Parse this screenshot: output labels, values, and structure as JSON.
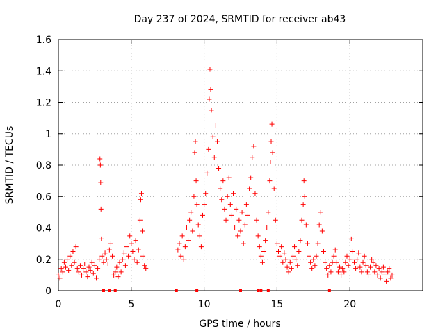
{
  "chart_data": {
    "type": "scatter",
    "title": "Day 237 of 2024, SRMTID for receiver ab43",
    "xlabel": "GPS time / hours",
    "ylabel": "SRMTID / TECUs",
    "xlim": [
      0,
      25
    ],
    "ylim": [
      0,
      1.6
    ],
    "xticks": [
      0,
      5,
      10,
      15,
      20
    ],
    "xtick_labels": [
      "0",
      "5",
      "10",
      "15",
      "20"
    ],
    "yticks": [
      0,
      0.2,
      0.4,
      0.6,
      0.8,
      1.0,
      1.2,
      1.4,
      1.6
    ],
    "ytick_labels": [
      "0",
      "0.2",
      "0.4",
      "0.6",
      "0.8",
      "1",
      "1.2",
      "1.4",
      "1.6"
    ],
    "grid": true,
    "marker": "plus",
    "color": "#ff0000",
    "series": [
      {
        "name": "SRMTID",
        "points": [
          [
            0.0,
            0.1
          ],
          [
            0.1,
            0.08
          ],
          [
            0.2,
            0.14
          ],
          [
            0.3,
            0.12
          ],
          [
            0.4,
            0.18
          ],
          [
            0.5,
            0.15
          ],
          [
            0.6,
            0.2
          ],
          [
            0.7,
            0.13
          ],
          [
            0.8,
            0.22
          ],
          [
            0.9,
            0.16
          ],
          [
            1.0,
            0.25
          ],
          [
            1.1,
            0.18
          ],
          [
            1.2,
            0.28
          ],
          [
            1.3,
            0.14
          ],
          [
            1.4,
            0.12
          ],
          [
            1.5,
            0.16
          ],
          [
            1.6,
            0.1
          ],
          [
            1.7,
            0.14
          ],
          [
            1.8,
            0.17
          ],
          [
            1.9,
            0.12
          ],
          [
            2.0,
            0.09
          ],
          [
            2.1,
            0.15
          ],
          [
            2.2,
            0.13
          ],
          [
            2.3,
            0.18
          ],
          [
            2.4,
            0.11
          ],
          [
            2.5,
            0.16
          ],
          [
            2.6,
            0.08
          ],
          [
            2.7,
            0.14
          ],
          [
            2.8,
            0.2
          ],
          [
            2.85,
            0.84
          ],
          [
            2.88,
            0.8
          ],
          [
            2.9,
            0.69
          ],
          [
            2.92,
            0.52
          ],
          [
            2.95,
            0.33
          ],
          [
            3.0,
            0.22
          ],
          [
            3.1,
            0.18
          ],
          [
            3.2,
            0.24
          ],
          [
            3.3,
            0.2
          ],
          [
            3.4,
            0.17
          ],
          [
            3.5,
            0.26
          ],
          [
            3.6,
            0.3
          ],
          [
            3.7,
            0.22
          ],
          [
            3.8,
            0.1
          ],
          [
            3.9,
            0.12
          ],
          [
            4.0,
            0.15
          ],
          [
            4.1,
            0.09
          ],
          [
            4.2,
            0.18
          ],
          [
            4.3,
            0.12
          ],
          [
            4.4,
            0.2
          ],
          [
            4.5,
            0.24
          ],
          [
            4.6,
            0.16
          ],
          [
            4.7,
            0.28
          ],
          [
            4.8,
            0.22
          ],
          [
            4.9,
            0.35
          ],
          [
            5.0,
            0.3
          ],
          [
            5.1,
            0.25
          ],
          [
            5.2,
            0.2
          ],
          [
            5.3,
            0.32
          ],
          [
            5.4,
            0.18
          ],
          [
            5.5,
            0.26
          ],
          [
            5.6,
            0.45
          ],
          [
            5.65,
            0.58
          ],
          [
            5.7,
            0.62
          ],
          [
            5.75,
            0.38
          ],
          [
            5.8,
            0.22
          ],
          [
            5.9,
            0.16
          ],
          [
            6.0,
            0.14
          ],
          [
            8.2,
            0.26
          ],
          [
            8.3,
            0.3
          ],
          [
            8.4,
            0.22
          ],
          [
            8.5,
            0.35
          ],
          [
            8.6,
            0.2
          ],
          [
            8.7,
            0.28
          ],
          [
            8.8,
            0.4
          ],
          [
            8.9,
            0.32
          ],
          [
            9.0,
            0.45
          ],
          [
            9.1,
            0.5
          ],
          [
            9.2,
            0.38
          ],
          [
            9.3,
            0.6
          ],
          [
            9.35,
            0.88
          ],
          [
            9.4,
            0.95
          ],
          [
            9.45,
            0.7
          ],
          [
            9.5,
            0.55
          ],
          [
            9.6,
            0.42
          ],
          [
            9.7,
            0.35
          ],
          [
            9.8,
            0.28
          ],
          [
            9.9,
            0.48
          ],
          [
            10.0,
            0.55
          ],
          [
            10.1,
            0.62
          ],
          [
            10.2,
            0.75
          ],
          [
            10.3,
            0.9
          ],
          [
            10.35,
            1.22
          ],
          [
            10.4,
            1.41
          ],
          [
            10.45,
            1.28
          ],
          [
            10.5,
            1.15
          ],
          [
            10.6,
            0.98
          ],
          [
            10.7,
            0.85
          ],
          [
            10.8,
            1.05
          ],
          [
            10.9,
            0.95
          ],
          [
            11.0,
            0.78
          ],
          [
            11.1,
            0.65
          ],
          [
            11.2,
            0.58
          ],
          [
            11.3,
            0.7
          ],
          [
            11.4,
            0.52
          ],
          [
            11.5,
            0.45
          ],
          [
            11.6,
            0.6
          ],
          [
            11.7,
            0.72
          ],
          [
            11.8,
            0.55
          ],
          [
            11.9,
            0.48
          ],
          [
            12.0,
            0.62
          ],
          [
            12.1,
            0.4
          ],
          [
            12.2,
            0.52
          ],
          [
            12.3,
            0.35
          ],
          [
            12.4,
            0.45
          ],
          [
            12.5,
            0.38
          ],
          [
            12.6,
            0.5
          ],
          [
            12.7,
            0.3
          ],
          [
            12.8,
            0.42
          ],
          [
            12.9,
            0.55
          ],
          [
            13.0,
            0.48
          ],
          [
            13.1,
            0.65
          ],
          [
            13.2,
            0.72
          ],
          [
            13.3,
            0.85
          ],
          [
            13.4,
            0.92
          ],
          [
            13.5,
            0.62
          ],
          [
            13.6,
            0.45
          ],
          [
            13.7,
            0.35
          ],
          [
            13.8,
            0.28
          ],
          [
            13.9,
            0.22
          ],
          [
            14.0,
            0.18
          ],
          [
            14.1,
            0.25
          ],
          [
            14.2,
            0.32
          ],
          [
            14.3,
            0.4
          ],
          [
            14.4,
            0.5
          ],
          [
            14.5,
            0.7
          ],
          [
            14.55,
            0.82
          ],
          [
            14.6,
            0.95
          ],
          [
            14.65,
            1.06
          ],
          [
            14.7,
            0.88
          ],
          [
            14.8,
            0.65
          ],
          [
            14.9,
            0.45
          ],
          [
            15.0,
            0.3
          ],
          [
            15.1,
            0.25
          ],
          [
            15.2,
            0.22
          ],
          [
            15.3,
            0.28
          ],
          [
            15.4,
            0.18
          ],
          [
            15.5,
            0.24
          ],
          [
            15.6,
            0.2
          ],
          [
            15.7,
            0.15
          ],
          [
            15.8,
            0.12
          ],
          [
            15.9,
            0.18
          ],
          [
            16.0,
            0.14
          ],
          [
            16.1,
            0.22
          ],
          [
            16.2,
            0.28
          ],
          [
            16.3,
            0.2
          ],
          [
            16.4,
            0.16
          ],
          [
            16.5,
            0.25
          ],
          [
            16.6,
            0.32
          ],
          [
            16.7,
            0.45
          ],
          [
            16.8,
            0.55
          ],
          [
            16.85,
            0.7
          ],
          [
            16.9,
            0.6
          ],
          [
            17.0,
            0.42
          ],
          [
            17.1,
            0.3
          ],
          [
            17.2,
            0.22
          ],
          [
            17.3,
            0.18
          ],
          [
            17.4,
            0.14
          ],
          [
            17.5,
            0.2
          ],
          [
            17.6,
            0.16
          ],
          [
            17.7,
            0.22
          ],
          [
            17.8,
            0.3
          ],
          [
            17.9,
            0.42
          ],
          [
            18.0,
            0.5
          ],
          [
            18.1,
            0.38
          ],
          [
            18.2,
            0.25
          ],
          [
            18.3,
            0.18
          ],
          [
            18.4,
            0.14
          ],
          [
            18.5,
            0.1
          ],
          [
            18.6,
            0.16
          ],
          [
            18.7,
            0.12
          ],
          [
            18.8,
            0.18
          ],
          [
            18.9,
            0.22
          ],
          [
            19.0,
            0.26
          ],
          [
            19.1,
            0.18
          ],
          [
            19.2,
            0.12
          ],
          [
            19.3,
            0.15
          ],
          [
            19.4,
            0.1
          ],
          [
            19.5,
            0.14
          ],
          [
            19.6,
            0.12
          ],
          [
            19.7,
            0.18
          ],
          [
            19.8,
            0.22
          ],
          [
            19.9,
            0.16
          ],
          [
            20.0,
            0.2
          ],
          [
            20.1,
            0.33
          ],
          [
            20.2,
            0.25
          ],
          [
            20.3,
            0.18
          ],
          [
            20.4,
            0.14
          ],
          [
            20.5,
            0.2
          ],
          [
            20.6,
            0.24
          ],
          [
            20.7,
            0.15
          ],
          [
            20.8,
            0.12
          ],
          [
            20.9,
            0.18
          ],
          [
            21.0,
            0.22
          ],
          [
            21.1,
            0.16
          ],
          [
            21.2,
            0.12
          ],
          [
            21.3,
            0.1
          ],
          [
            21.4,
            0.15
          ],
          [
            21.5,
            0.2
          ],
          [
            21.6,
            0.18
          ],
          [
            21.7,
            0.12
          ],
          [
            21.8,
            0.16
          ],
          [
            21.9,
            0.1
          ],
          [
            22.0,
            0.14
          ],
          [
            22.1,
            0.08
          ],
          [
            22.2,
            0.12
          ],
          [
            22.3,
            0.15
          ],
          [
            22.4,
            0.1
          ],
          [
            22.5,
            0.06
          ],
          [
            22.6,
            0.12
          ],
          [
            22.7,
            0.14
          ],
          [
            22.8,
            0.08
          ],
          [
            22.9,
            0.1
          ]
        ],
        "zero_markers": [
          3.1,
          3.5,
          3.9,
          8.1,
          9.5,
          12.5,
          13.7,
          13.9,
          14.4,
          18.6
        ]
      }
    ]
  }
}
